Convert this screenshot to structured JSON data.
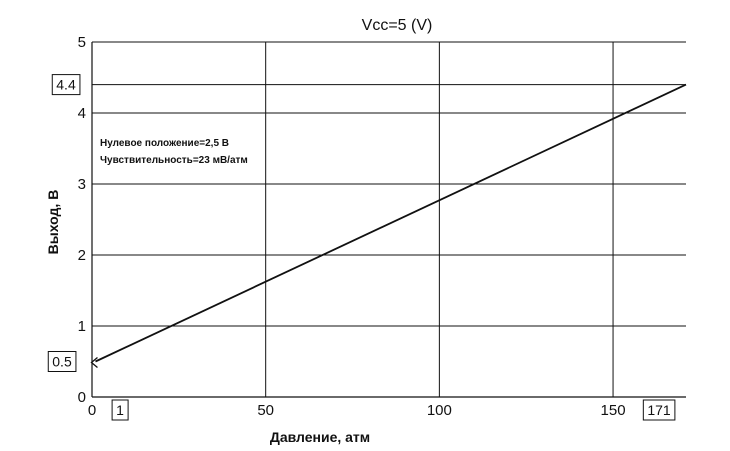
{
  "chart_data": {
    "type": "line",
    "title": "Vcc=5 (V)",
    "xlabel": "Давление, атм",
    "ylabel": "Выход, В",
    "xlim": [
      0,
      171
    ],
    "ylim": [
      0,
      5
    ],
    "x_ticks": [
      0,
      50,
      100,
      150
    ],
    "y_ticks": [
      0,
      1,
      2,
      3,
      4,
      5
    ],
    "grid": true,
    "series": [
      {
        "x": [
          1,
          171
        ],
        "y": [
          0.5,
          4.4
        ],
        "color": "#111111"
      }
    ],
    "annotations": [
      "Нулевое положение=2,5 В",
      "Чувствительность=23 мВ/атм"
    ],
    "highlighted_values": {
      "y_start": "0.5",
      "y_end": "4.4",
      "x_start": "1",
      "x_end": "171"
    }
  }
}
